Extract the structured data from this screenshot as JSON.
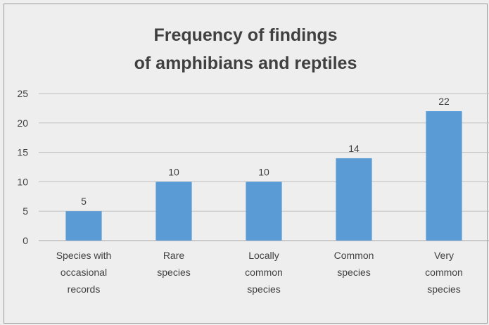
{
  "chart_data": {
    "type": "bar",
    "title_lines": [
      "Frequency of findings",
      "of amphibians and reptiles"
    ],
    "categories": [
      [
        "Species with",
        "occasional",
        "records"
      ],
      [
        "Rare",
        "species"
      ],
      [
        "Locally",
        "common",
        "species"
      ],
      [
        "Common",
        "species"
      ],
      [
        "Very",
        "common",
        "species"
      ]
    ],
    "values": [
      5,
      10,
      10,
      14,
      22
    ],
    "y_ticks": [
      0,
      5,
      10,
      15,
      20,
      25
    ],
    "ylim": [
      0,
      25
    ],
    "grid": true,
    "legend": "none",
    "bar_color": "#5b9bd5",
    "grid_color": "#c0c0c0",
    "text_color": "#404040"
  }
}
